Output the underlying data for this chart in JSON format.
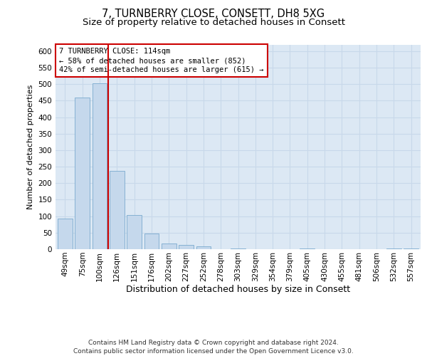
{
  "title": "7, TURNBERRY CLOSE, CONSETT, DH8 5XG",
  "subtitle": "Size of property relative to detached houses in Consett",
  "xlabel": "Distribution of detached houses by size in Consett",
  "ylabel": "Number of detached properties",
  "categories": [
    "49sqm",
    "75sqm",
    "100sqm",
    "126sqm",
    "151sqm",
    "176sqm",
    "202sqm",
    "227sqm",
    "252sqm",
    "278sqm",
    "303sqm",
    "329sqm",
    "354sqm",
    "379sqm",
    "405sqm",
    "430sqm",
    "455sqm",
    "481sqm",
    "506sqm",
    "532sqm",
    "557sqm"
  ],
  "values": [
    93,
    460,
    503,
    237,
    104,
    47,
    17,
    12,
    8,
    0,
    3,
    0,
    0,
    0,
    2,
    0,
    0,
    0,
    0,
    3,
    3
  ],
  "bar_color": "#c5d8ec",
  "bar_edge_color": "#7aaace",
  "vline_x": 2.5,
  "vline_color": "#cc0000",
  "annotation_text": "7 TURNBERRY CLOSE: 114sqm\n← 58% of detached houses are smaller (852)\n42% of semi-detached houses are larger (615) →",
  "annotation_box_color": "#ffffff",
  "annotation_box_edge": "#cc0000",
  "ylim": [
    0,
    620
  ],
  "yticks": [
    0,
    50,
    100,
    150,
    200,
    250,
    300,
    350,
    400,
    450,
    500,
    550,
    600
  ],
  "grid_color": "#c8d8ea",
  "background_color": "#dce8f4",
  "footer": "Contains HM Land Registry data © Crown copyright and database right 2024.\nContains public sector information licensed under the Open Government Licence v3.0.",
  "title_fontsize": 10.5,
  "subtitle_fontsize": 9.5,
  "xlabel_fontsize": 9,
  "ylabel_fontsize": 8,
  "tick_fontsize": 7.5,
  "annotation_fontsize": 7.5,
  "footer_fontsize": 6.5
}
